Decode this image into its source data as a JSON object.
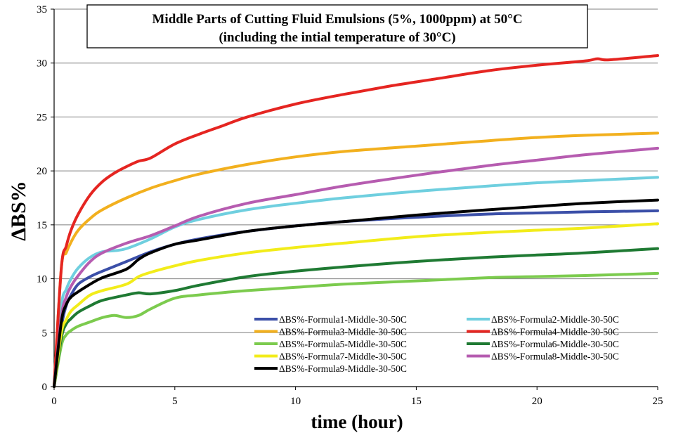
{
  "chart_data": {
    "type": "line",
    "title": "Middle Parts of Cutting Fluid Emulsions (5%, 1000ppm) at 50°C",
    "subtitle": "(including the intial temperature of 30°C)",
    "xlabel": "time (hour)",
    "ylabel": "ΔBS%",
    "xlim": [
      0,
      25
    ],
    "ylim": [
      0,
      35
    ],
    "x_ticks": [
      "0",
      "5",
      "10",
      "15",
      "20",
      "25"
    ],
    "y_ticks": [
      "0",
      "5",
      "10",
      "15",
      "20",
      "25",
      "30",
      "35"
    ],
    "grid": "horizontal",
    "legend_position": "bottom-right",
    "series": [
      {
        "name": "ΔBS%-Formula1-Middle-30-50C",
        "color": "#3b4fa8",
        "x": [
          0,
          0.3,
          0.5,
          0.7,
          1,
          1.5,
          2,
          3,
          4,
          5,
          6,
          8,
          10,
          12,
          15,
          18,
          20,
          22,
          25
        ],
        "y": [
          0,
          5.5,
          7.5,
          8.5,
          9.5,
          10.2,
          10.7,
          11.6,
          12.5,
          13.2,
          13.7,
          14.4,
          14.9,
          15.3,
          15.7,
          16,
          16.1,
          16.2,
          16.3
        ]
      },
      {
        "name": "ΔBS%-Formula2-Middle-30-50C",
        "color": "#6fcfdf",
        "x": [
          0,
          0.3,
          0.5,
          0.7,
          1,
          1.5,
          2,
          2.5,
          3,
          4,
          5,
          6,
          8,
          10,
          12,
          15,
          18,
          20,
          22,
          25
        ],
        "y": [
          0,
          7.5,
          9,
          10,
          11,
          12,
          12.5,
          12.6,
          12.8,
          13.7,
          14.8,
          15.5,
          16.4,
          17,
          17.5,
          18.1,
          18.6,
          18.9,
          19.1,
          19.4
        ]
      },
      {
        "name": "ΔBS%-Formula3-Middle-30-50C",
        "color": "#f2b01e",
        "x": [
          0,
          0.3,
          0.5,
          0.7,
          1,
          1.5,
          2,
          3,
          4,
          5,
          6,
          8,
          10,
          12,
          15,
          18,
          20,
          22,
          25
        ],
        "y": [
          0,
          11,
          12.4,
          13.4,
          14.5,
          15.6,
          16.4,
          17.5,
          18.4,
          19.1,
          19.7,
          20.6,
          21.3,
          21.8,
          22.3,
          22.8,
          23.1,
          23.3,
          23.5
        ]
      },
      {
        "name": "ΔBS%-Formula4-Middle-30-50C",
        "color": "#e52521",
        "x": [
          0,
          0.3,
          0.5,
          0.7,
          1,
          1.5,
          2,
          2.5,
          3,
          3.5,
          4,
          5,
          6,
          7,
          8,
          10,
          12,
          14,
          16,
          18,
          20,
          22,
          22.5,
          23,
          25
        ],
        "y": [
          0,
          11,
          13,
          14.5,
          16,
          17.8,
          19,
          19.8,
          20.4,
          20.9,
          21.2,
          22.5,
          23.4,
          24.2,
          25,
          26.2,
          27.1,
          27.9,
          28.6,
          29.3,
          29.8,
          30.2,
          30.4,
          30.3,
          30.7
        ]
      },
      {
        "name": "ΔBS%-Formula5-Middle-30-50C",
        "color": "#7ccb4e",
        "x": [
          0,
          0.3,
          0.5,
          0.7,
          1,
          1.5,
          2,
          2.5,
          3,
          3.5,
          4,
          5,
          6,
          8,
          10,
          12,
          15,
          18,
          20,
          22,
          25
        ],
        "y": [
          0,
          3.8,
          4.8,
          5.2,
          5.6,
          6,
          6.4,
          6.6,
          6.4,
          6.6,
          7.2,
          8.2,
          8.5,
          8.9,
          9.2,
          9.5,
          9.8,
          10.1,
          10.2,
          10.3,
          10.5
        ]
      },
      {
        "name": "ΔBS%-Formula6-Middle-30-50C",
        "color": "#1f7a33",
        "x": [
          0,
          0.3,
          0.5,
          0.7,
          1,
          1.5,
          2,
          3,
          3.5,
          4,
          5,
          6,
          8,
          10,
          12,
          15,
          18,
          20,
          22,
          25
        ],
        "y": [
          0,
          4.5,
          5.8,
          6.3,
          6.9,
          7.5,
          8,
          8.5,
          8.7,
          8.6,
          8.9,
          9.4,
          10.2,
          10.7,
          11.1,
          11.6,
          12,
          12.2,
          12.4,
          12.8
        ]
      },
      {
        "name": "ΔBS%-Formula7-Middle-30-50C",
        "color": "#f2ec1a",
        "x": [
          0,
          0.3,
          0.5,
          0.7,
          1,
          1.5,
          2,
          3,
          3.5,
          4,
          5,
          6,
          8,
          10,
          12,
          15,
          18,
          20,
          22,
          25
        ],
        "y": [
          0,
          5,
          6.2,
          7,
          7.6,
          8.5,
          8.9,
          9.5,
          10.2,
          10.6,
          11.2,
          11.7,
          12.4,
          12.9,
          13.3,
          13.9,
          14.3,
          14.5,
          14.7,
          15.1
        ]
      },
      {
        "name": "ΔBS%-Formula8-Middle-30-50C",
        "color": "#b65cb0",
        "x": [
          0,
          0.3,
          0.5,
          0.7,
          1,
          1.5,
          2,
          3,
          4,
          5,
          6,
          8,
          10,
          12,
          15,
          18,
          20,
          22,
          25
        ],
        "y": [
          0,
          6.5,
          8.3,
          9.3,
          10.3,
          11.6,
          12.4,
          13.3,
          14,
          14.9,
          15.8,
          17,
          17.8,
          18.6,
          19.6,
          20.5,
          21,
          21.5,
          22.1
        ]
      },
      {
        "name": "ΔBS%-Formula9-Middle-30-50C",
        "color": "#000000",
        "x": [
          0,
          0.3,
          0.5,
          0.7,
          1,
          1.5,
          2,
          3,
          3.5,
          4,
          5,
          6,
          8,
          10,
          12,
          15,
          18,
          20,
          22,
          25
        ],
        "y": [
          0,
          6,
          7.6,
          8.3,
          8.8,
          9.5,
          10.1,
          10.9,
          11.8,
          12.4,
          13.2,
          13.6,
          14.4,
          14.9,
          15.3,
          15.9,
          16.4,
          16.7,
          17,
          17.3
        ]
      }
    ]
  }
}
